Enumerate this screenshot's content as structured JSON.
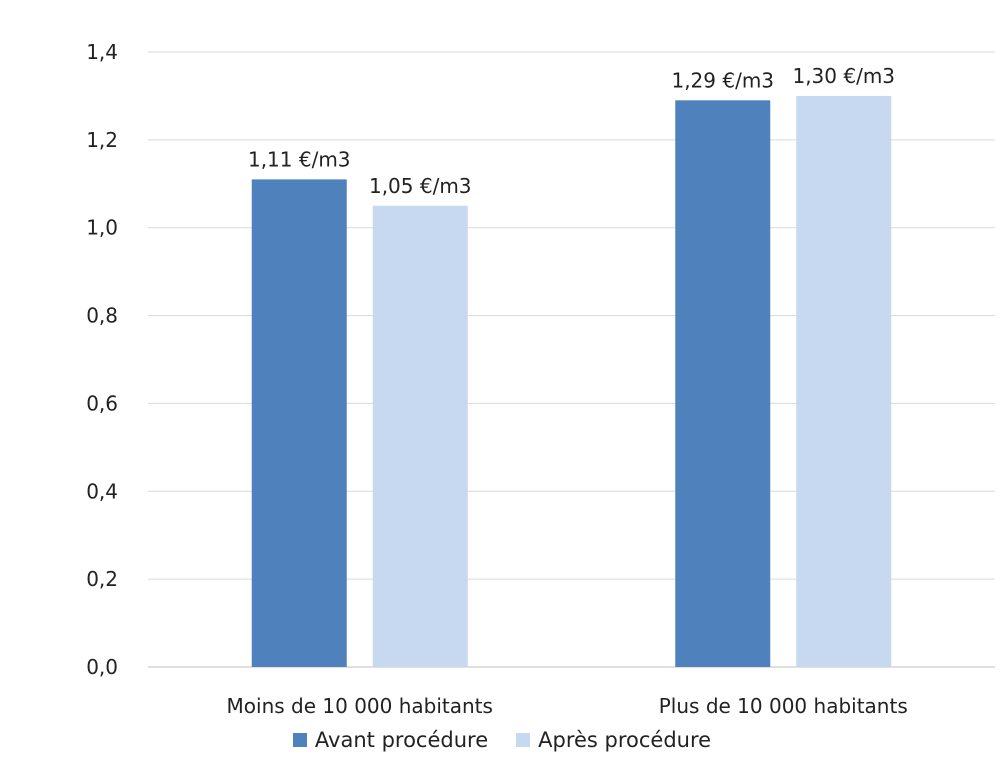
{
  "chart_data": {
    "type": "bar",
    "title": "",
    "categories": [
      "Moins de 10 000 habitants",
      "Plus de 10 000 habitants"
    ],
    "series": [
      {
        "name": "Avant procédure",
        "values": [
          1.11,
          1.29
        ],
        "labels": [
          "1,11 €/m3",
          "1,29 €/m3"
        ],
        "color": "#4F81BD"
      },
      {
        "name": "Après procédure",
        "values": [
          1.05,
          1.3
        ],
        "labels": [
          "1,05 €/m3",
          "1,30 €/m3"
        ],
        "color": "#C6D9F1"
      }
    ],
    "ylim": [
      0,
      1.4
    ],
    "yticks": [
      "0,0",
      "0,2",
      "0,4",
      "0,6",
      "0,8",
      "1,0",
      "1,2",
      "1,4"
    ],
    "grid": true,
    "legend_position": "bottom"
  }
}
